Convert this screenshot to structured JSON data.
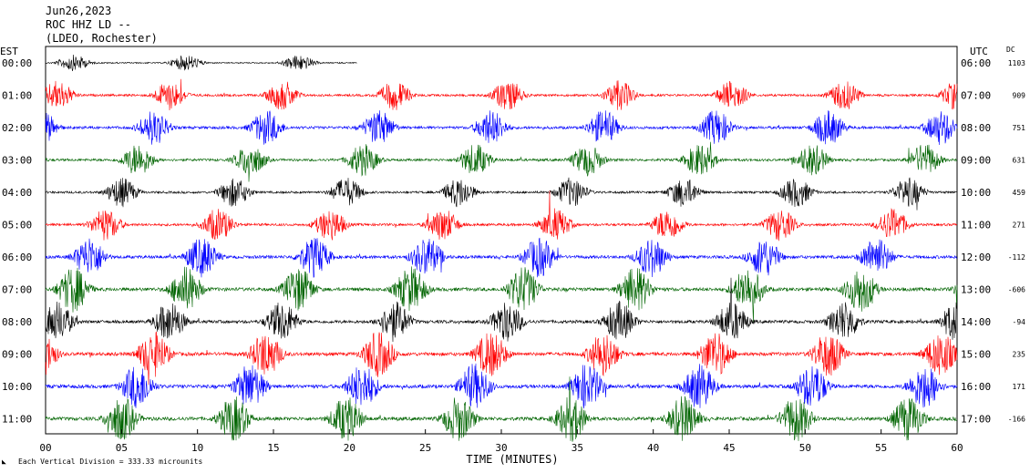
{
  "header": {
    "date": "Jun26,2023",
    "station": "ROC HHZ LD --",
    "location": "(LDEO, Rochester)"
  },
  "left_axis_title": "EST",
  "right_axis_title": "UTC",
  "dc_title": "DC",
  "footer_note": "Each Vertical Division = 333.33 microunits",
  "chart_data": {
    "type": "line",
    "title": "Jun26,2023 ROC HHZ LD -- (LDEO, Rochester)",
    "xlabel": "TIME (MINUTES)",
    "xlim": [
      0,
      60
    ],
    "x_ticks": [
      "00",
      "05",
      "10",
      "15",
      "20",
      "25",
      "30",
      "35",
      "40",
      "45",
      "50",
      "55",
      "60"
    ],
    "grid": false,
    "series": [
      {
        "est": "00:00",
        "utc": "06:00",
        "dc": "1103",
        "color": "#000000",
        "partial_end_min": 20.5,
        "level": 0.3
      },
      {
        "est": "01:00",
        "utc": "07:00",
        "dc": "909",
        "color": "#ff0000",
        "level": 0.55
      },
      {
        "est": "02:00",
        "utc": "08:00",
        "dc": "751",
        "color": "#0000ff",
        "level": 0.65
      },
      {
        "est": "03:00",
        "utc": "09:00",
        "dc": "631",
        "color": "#006400",
        "level": 0.6
      },
      {
        "est": "04:00",
        "utc": "10:00",
        "dc": "459",
        "color": "#000000",
        "level": 0.55
      },
      {
        "est": "05:00",
        "utc": "11:00",
        "dc": "271",
        "color": "#ff0000",
        "level": 0.6
      },
      {
        "est": "06:00",
        "utc": "12:00",
        "dc": "-112",
        "color": "#0000ff",
        "level": 0.75
      },
      {
        "est": "07:00",
        "utc": "13:00",
        "dc": "-606",
        "color": "#006400",
        "level": 0.85
      },
      {
        "est": "08:00",
        "utc": "14:00",
        "dc": "-94",
        "color": "#000000",
        "level": 0.75
      },
      {
        "est": "09:00",
        "utc": "15:00",
        "dc": "235",
        "color": "#ff0000",
        "level": 0.85
      },
      {
        "est": "10:00",
        "utc": "16:00",
        "dc": "171",
        "color": "#0000ff",
        "level": 0.85
      },
      {
        "est": "11:00",
        "utc": "17:00",
        "dc": "-166",
        "color": "#006400",
        "level": 0.85
      }
    ]
  }
}
